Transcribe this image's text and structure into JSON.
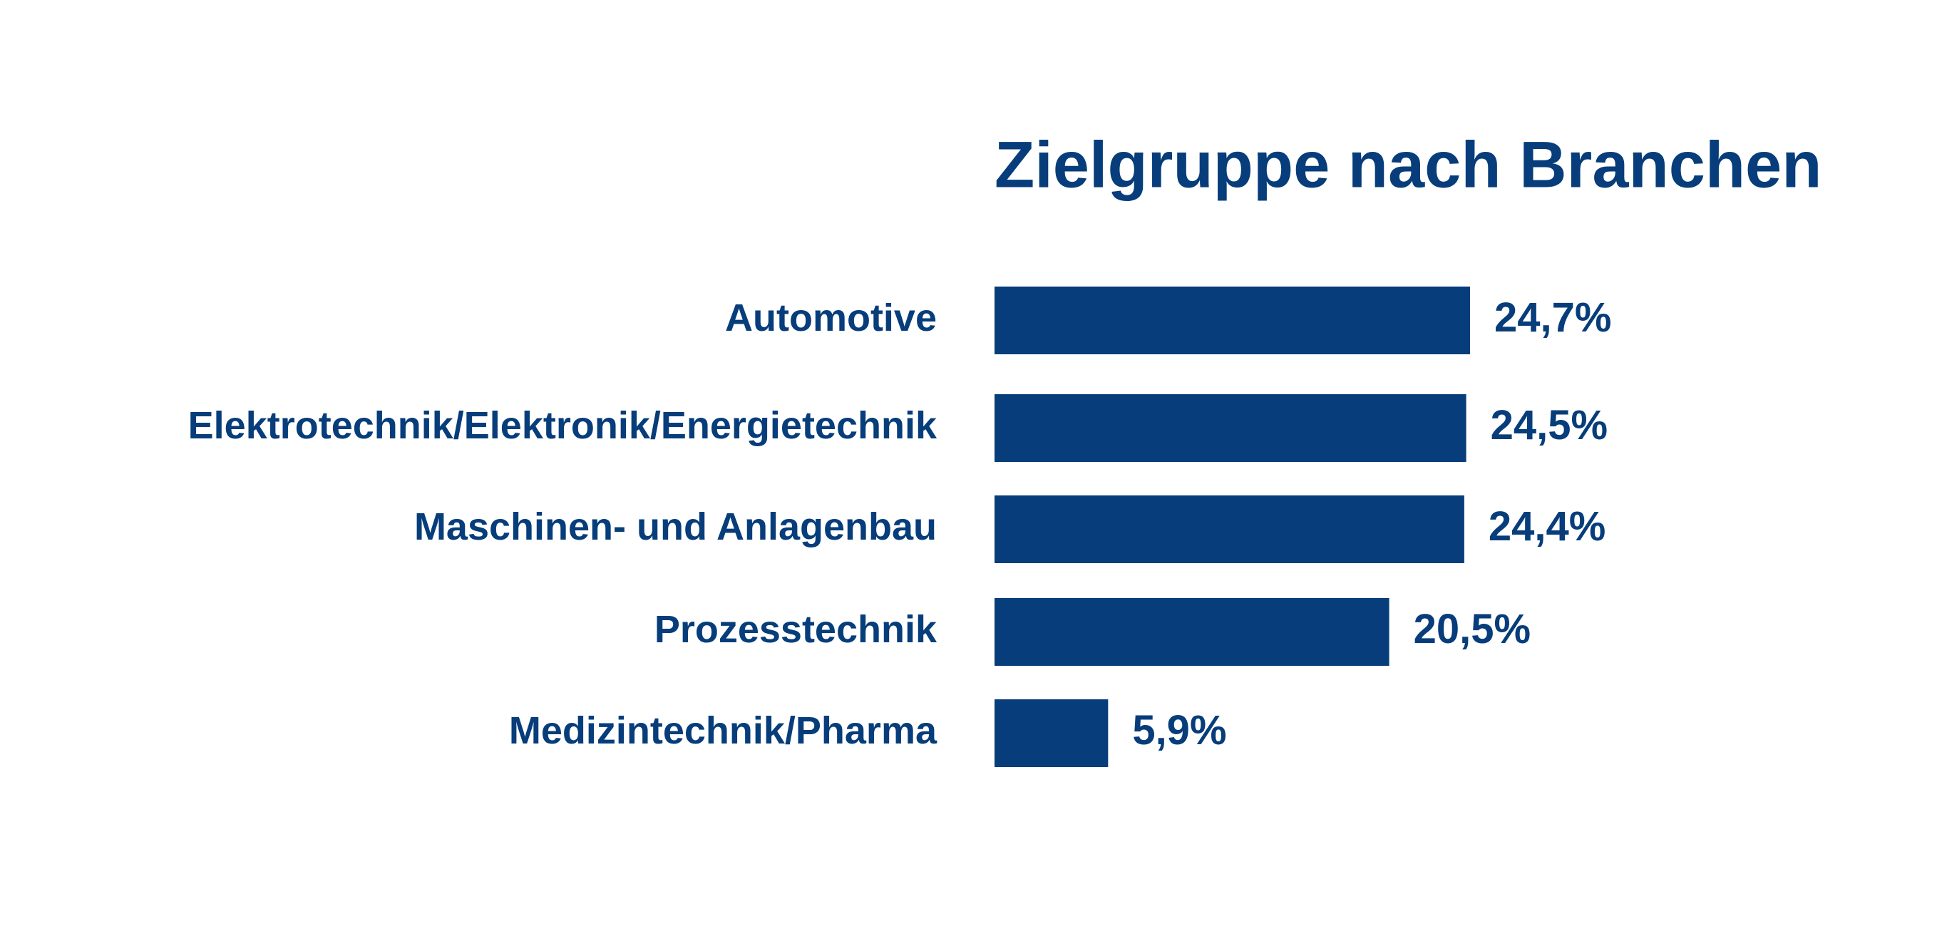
{
  "chart_data": {
    "type": "hbar",
    "title": "Zielgruppe nach Branchen",
    "categories": [
      "Automotive",
      "Elektrotechnik/Elektronik/Energietechnik",
      "Maschinen- und Anlagenbau",
      "Prozesstechnik",
      "Medizintechnik/Pharma"
    ],
    "values": [
      24.7,
      24.5,
      24.4,
      20.5,
      5.9
    ],
    "value_labels": [
      "24,7%",
      "24,5%",
      "24,4%",
      "20,5%",
      "5,9%"
    ],
    "color": "#063d7a"
  }
}
